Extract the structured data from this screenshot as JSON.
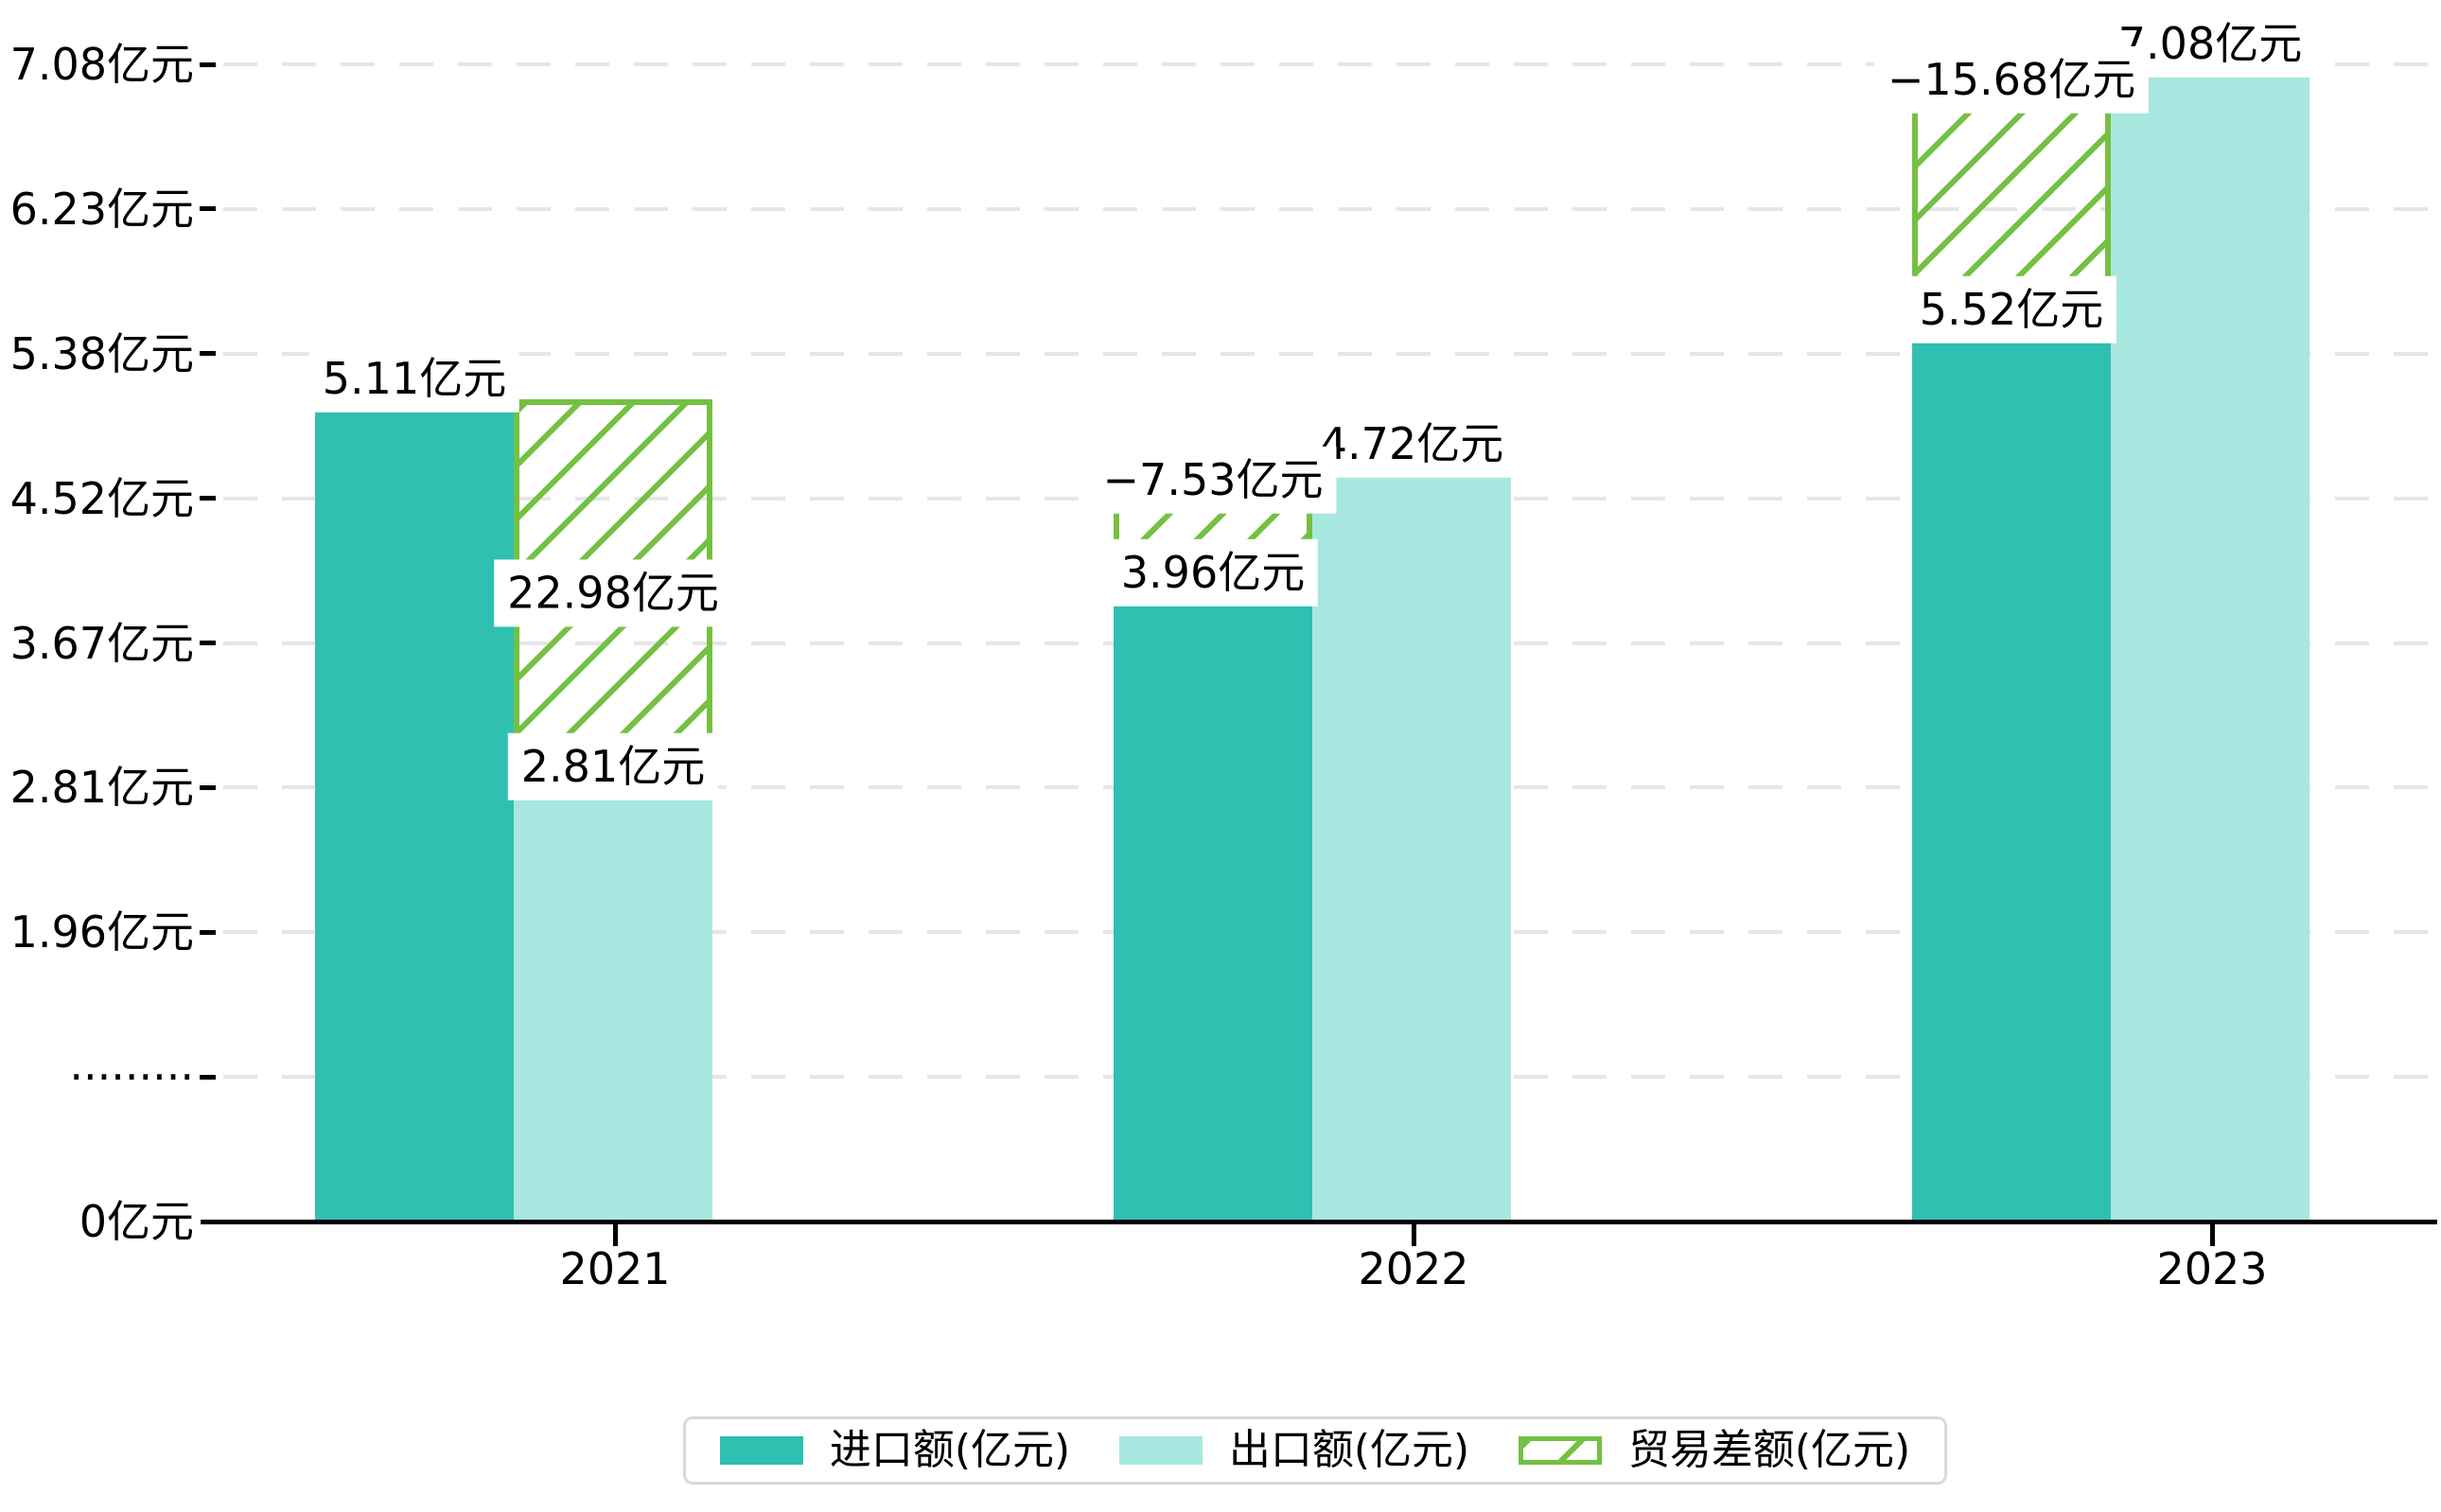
{
  "chart_data": {
    "type": "bar",
    "title": "",
    "categories": [
      "2021",
      "2022",
      "2023"
    ],
    "series": [
      {
        "name": "进口额(亿元)",
        "role": "import",
        "values": [
          5.11,
          3.96,
          5.52
        ],
        "labels": [
          "5.11亿元",
          "3.96亿元",
          "5.52亿元"
        ]
      },
      {
        "name": "出口额(亿元)",
        "role": "export",
        "values": [
          2.81,
          4.72,
          7.08
        ],
        "labels": [
          "2.81亿元",
          "4.72亿元",
          "7.08亿元"
        ]
      },
      {
        "name": "贸易差额(亿元)",
        "role": "difference-hatched-overlay",
        "values": [
          22.98,
          -7.53,
          -15.68
        ],
        "labels": [
          "22.98亿元",
          "−7.53亿元",
          "−15.68亿元"
        ]
      }
    ],
    "y_axis": {
      "tick_labels": [
        "0亿元",
        "·········",
        "1.96亿元",
        "2.81亿元",
        "3.67亿元",
        "4.52亿元",
        "5.38亿元",
        "6.23亿元",
        "7.08亿元"
      ],
      "tick_values": [
        0,
        null,
        1.96,
        2.81,
        3.67,
        4.52,
        5.38,
        6.23,
        7.08
      ],
      "grid": "dashed"
    },
    "x_axis": {
      "tick_labels": [
        "2021",
        "2022",
        "2023"
      ]
    },
    "legend_position": "bottom"
  },
  "legend": {
    "items": [
      {
        "label": "进口额(亿元)",
        "swatch": "import-solid"
      },
      {
        "label": "出口额(亿元)",
        "swatch": "export-solid"
      },
      {
        "label": "贸易差额(亿元)",
        "swatch": "difference-hatched"
      }
    ]
  },
  "colors": {
    "import": "#2fc0b1",
    "export": "#a8e7df",
    "difference": "#74c042",
    "grid": "#e6e6e6",
    "axis": "#000000",
    "text": "#000000",
    "label_background": "#ffffff"
  }
}
